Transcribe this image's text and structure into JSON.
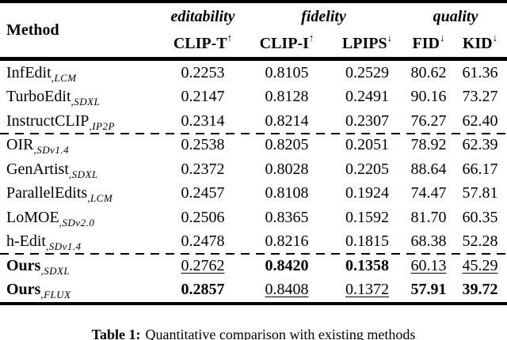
{
  "table": {
    "method_label": "Method",
    "groups": [
      {
        "label": "editability"
      },
      {
        "label": "fidelity"
      },
      {
        "label": "quality"
      }
    ],
    "columns": [
      {
        "label": "CLIP-T",
        "arrow": "↑"
      },
      {
        "label": "CLIP-I",
        "arrow": "↑"
      },
      {
        "label": "LPIPS",
        "arrow": "↓"
      },
      {
        "label": "FID",
        "arrow": "↓"
      },
      {
        "label": "KID",
        "arrow": "↓"
      }
    ],
    "rows": [
      {
        "method": "InfEdit",
        "subscript": ",LCM",
        "bold_method": false,
        "dashed_after": false,
        "cells": [
          {
            "v": "0.2253",
            "s": "plain"
          },
          {
            "v": "0.8105",
            "s": "plain"
          },
          {
            "v": "0.2529",
            "s": "plain"
          },
          {
            "v": "80.62",
            "s": "plain"
          },
          {
            "v": "61.36",
            "s": "plain"
          }
        ]
      },
      {
        "method": "TurboEdit",
        "subscript": ",SDXL",
        "bold_method": false,
        "dashed_after": false,
        "cells": [
          {
            "v": "0.2147",
            "s": "plain"
          },
          {
            "v": "0.8128",
            "s": "plain"
          },
          {
            "v": "0.2491",
            "s": "plain"
          },
          {
            "v": "90.16",
            "s": "plain"
          },
          {
            "v": "73.27",
            "s": "plain"
          }
        ]
      },
      {
        "method": "InstructCLIP",
        "subscript": ",IP2P",
        "bold_method": false,
        "dashed_after": true,
        "cells": [
          {
            "v": "0.2314",
            "s": "plain"
          },
          {
            "v": "0.8214",
            "s": "plain"
          },
          {
            "v": "0.2307",
            "s": "plain"
          },
          {
            "v": "76.27",
            "s": "plain"
          },
          {
            "v": "62.40",
            "s": "plain"
          }
        ]
      },
      {
        "method": "OIR",
        "subscript": ",SDv1.4",
        "bold_method": false,
        "dashed_after": false,
        "cells": [
          {
            "v": "0.2538",
            "s": "plain"
          },
          {
            "v": "0.8205",
            "s": "plain"
          },
          {
            "v": "0.2051",
            "s": "plain"
          },
          {
            "v": "78.92",
            "s": "plain"
          },
          {
            "v": "62.39",
            "s": "plain"
          }
        ]
      },
      {
        "method": "GenArtist",
        "subscript": ",SDXL",
        "bold_method": false,
        "dashed_after": false,
        "cells": [
          {
            "v": "0.2372",
            "s": "plain"
          },
          {
            "v": "0.8028",
            "s": "plain"
          },
          {
            "v": "0.2205",
            "s": "plain"
          },
          {
            "v": "88.64",
            "s": "plain"
          },
          {
            "v": "66.17",
            "s": "plain"
          }
        ]
      },
      {
        "method": "ParallelEdits",
        "subscript": ",LCM",
        "bold_method": false,
        "dashed_after": false,
        "cells": [
          {
            "v": "0.2457",
            "s": "plain"
          },
          {
            "v": "0.8108",
            "s": "plain"
          },
          {
            "v": "0.1924",
            "s": "plain"
          },
          {
            "v": "74.47",
            "s": "plain"
          },
          {
            "v": "57.81",
            "s": "plain"
          }
        ]
      },
      {
        "method": "LoMOE",
        "subscript": ",SDv2.0",
        "bold_method": false,
        "dashed_after": false,
        "cells": [
          {
            "v": "0.2506",
            "s": "plain"
          },
          {
            "v": "0.8365",
            "s": "plain"
          },
          {
            "v": "0.1592",
            "s": "plain"
          },
          {
            "v": "81.70",
            "s": "plain"
          },
          {
            "v": "60.35",
            "s": "plain"
          }
        ]
      },
      {
        "method": "h-Edit",
        "subscript": ",SDv1.4",
        "bold_method": false,
        "dashed_after": true,
        "cells": [
          {
            "v": "0.2478",
            "s": "plain"
          },
          {
            "v": "0.8216",
            "s": "plain"
          },
          {
            "v": "0.1815",
            "s": "plain"
          },
          {
            "v": "68.38",
            "s": "plain"
          },
          {
            "v": "52.28",
            "s": "plain"
          }
        ]
      },
      {
        "method": "Ours",
        "subscript": ",SDXL",
        "bold_method": true,
        "dashed_after": false,
        "cells": [
          {
            "v": "0.2762",
            "s": "underline"
          },
          {
            "v": "0.8420",
            "s": "bold"
          },
          {
            "v": "0.1358",
            "s": "bold"
          },
          {
            "v": "60.13",
            "s": "underline"
          },
          {
            "v": "45.29",
            "s": "underline"
          }
        ]
      },
      {
        "method": "Ours",
        "subscript": ",FLUX",
        "bold_method": true,
        "dashed_after": false,
        "cells": [
          {
            "v": "0.2857",
            "s": "bold"
          },
          {
            "v": "0.8408",
            "s": "underline"
          },
          {
            "v": "0.1372",
            "s": "underline"
          },
          {
            "v": "57.91",
            "s": "bold"
          },
          {
            "v": "39.72",
            "s": "bold"
          }
        ]
      }
    ]
  },
  "caption": {
    "label": "Table 1:",
    "text": "Quantitative comparison with existing methods"
  }
}
